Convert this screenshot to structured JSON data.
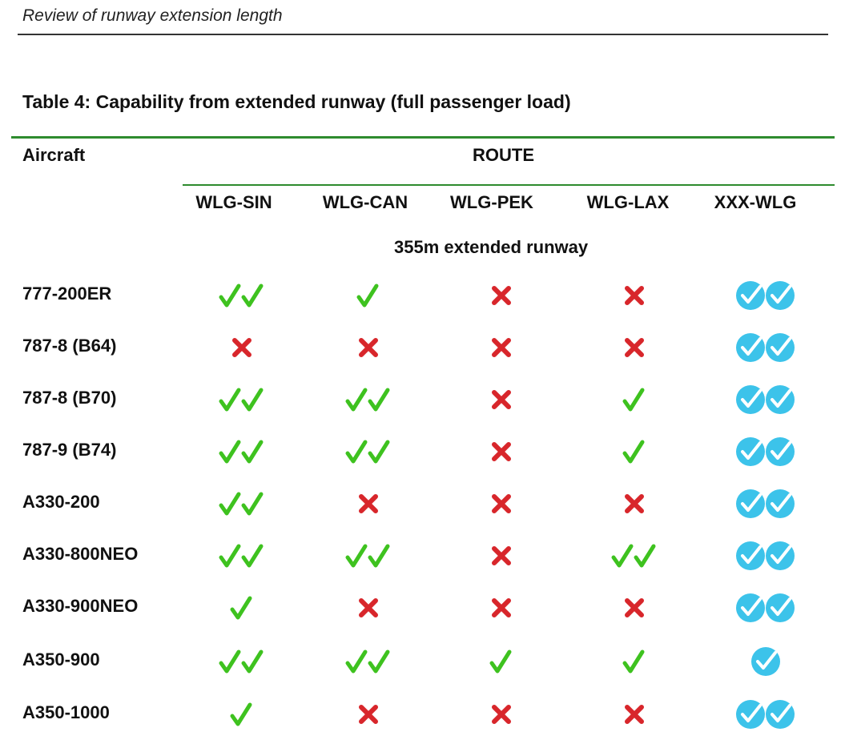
{
  "header": {
    "text": "Review of runway extension length"
  },
  "table": {
    "title": "Table 4: Capability from extended runway (full passenger load)",
    "aircraft_header": "Aircraft",
    "route_header": "ROUTE",
    "subtitle": "355m extended runway",
    "routes": [
      "WLG-SIN",
      "WLG-CAN",
      "WLG-PEK",
      "WLG-LAX",
      "XXX-WLG"
    ],
    "rows": [
      {
        "aircraft": "777-200ER",
        "cells": [
          "double-check",
          "check",
          "cross",
          "cross",
          "double-blue-check"
        ]
      },
      {
        "aircraft": "787-8 (B64)",
        "cells": [
          "cross",
          "cross",
          "cross",
          "cross",
          "double-blue-check"
        ]
      },
      {
        "aircraft": "787-8 (B70)",
        "cells": [
          "double-check",
          "double-check",
          "cross",
          "check",
          "double-blue-check"
        ]
      },
      {
        "aircraft": "787-9 (B74)",
        "cells": [
          "double-check",
          "double-check",
          "cross",
          "check",
          "double-blue-check"
        ]
      },
      {
        "aircraft": "A330-200",
        "cells": [
          "double-check",
          "cross",
          "cross",
          "cross",
          "double-blue-check"
        ]
      },
      {
        "aircraft": "A330-800NEO",
        "cells": [
          "double-check",
          "double-check",
          "cross",
          "double-check",
          "double-blue-check"
        ]
      },
      {
        "aircraft": "A330-900NEO",
        "cells": [
          "check",
          "cross",
          "cross",
          "cross",
          "double-blue-check"
        ]
      },
      {
        "aircraft": "A350-900",
        "cells": [
          "double-check",
          "double-check",
          "check",
          "check",
          "blue-check"
        ]
      },
      {
        "aircraft": "A350-1000",
        "cells": [
          "check",
          "cross",
          "cross",
          "cross",
          "double-blue-check"
        ]
      }
    ]
  },
  "colors": {
    "green_check": "#3ec21f",
    "red_cross": "#d8262b",
    "blue_circle": "#3cc3ea",
    "rule_green": "#2e8b2e"
  }
}
